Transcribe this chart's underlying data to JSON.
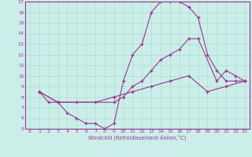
{
  "xlabel": "Windchill (Refroidissement éolien,°C)",
  "bg_color": "#cceee8",
  "grid_color": "#aaddcc",
  "line_color": "#993399",
  "xlim": [
    -0.5,
    23.5
  ],
  "ylim": [
    5,
    17
  ],
  "xticks": [
    0,
    1,
    2,
    3,
    4,
    5,
    6,
    7,
    8,
    9,
    10,
    11,
    12,
    13,
    14,
    15,
    16,
    17,
    18,
    19,
    20,
    21,
    22,
    23
  ],
  "yticks": [
    5,
    6,
    7,
    8,
    9,
    10,
    11,
    12,
    13,
    14,
    15,
    16,
    17
  ],
  "line1_x": [
    1,
    2,
    3,
    4,
    5,
    6,
    7,
    8,
    9,
    10,
    11,
    12,
    13,
    14,
    15,
    16,
    17,
    18,
    19,
    20,
    21,
    22,
    23
  ],
  "line1_y": [
    8.5,
    7.5,
    7.5,
    6.5,
    6.0,
    5.5,
    5.5,
    5.0,
    5.5,
    9.5,
    12.0,
    13.0,
    16.0,
    17.0,
    17.0,
    17.0,
    16.5,
    15.5,
    12.0,
    10.5,
    9.5,
    9.5,
    9.5
  ],
  "line2_x": [
    1,
    3,
    9,
    10,
    11,
    12,
    13,
    14,
    15,
    16,
    17,
    18,
    20,
    21,
    22,
    23
  ],
  "line2_y": [
    8.5,
    7.5,
    7.5,
    8.0,
    9.0,
    9.5,
    10.5,
    11.5,
    12.0,
    12.5,
    13.5,
    13.5,
    9.5,
    10.5,
    10.0,
    9.5
  ],
  "line3_x": [
    1,
    3,
    5,
    7,
    9,
    11,
    13,
    15,
    17,
    19,
    21,
    23
  ],
  "line3_y": [
    8.5,
    7.5,
    7.5,
    7.5,
    8.0,
    8.5,
    9.0,
    9.5,
    10.0,
    8.5,
    9.0,
    9.5
  ]
}
